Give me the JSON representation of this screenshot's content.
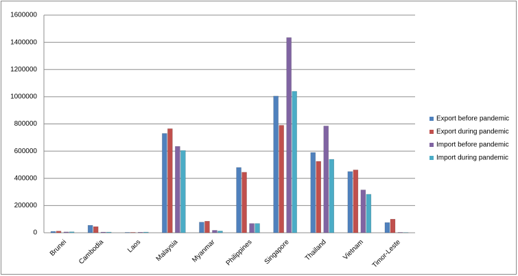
{
  "chart_data": {
    "type": "bar",
    "categories": [
      "Brunei",
      "Cambodia",
      "Laos",
      "Malaysia",
      "Myanmar",
      "Philippines",
      "Singapore",
      "Thailand",
      "Vietnam",
      "Timor-Leste"
    ],
    "series": [
      {
        "name": "Export before pandemic",
        "color": "#4f81bd",
        "values": [
          10000,
          55000,
          3000,
          730000,
          78000,
          480000,
          1005000,
          590000,
          450000,
          75000
        ]
      },
      {
        "name": "Export during pandemic",
        "color": "#c0504d",
        "values": [
          12000,
          45000,
          3000,
          765000,
          85000,
          445000,
          790000,
          525000,
          462000,
          100000
        ]
      },
      {
        "name": "Import before pandemic",
        "color": "#8064a2",
        "values": [
          6000,
          5000,
          4000,
          635000,
          18000,
          68000,
          1435000,
          785000,
          315000,
          3000
        ]
      },
      {
        "name": "Import during pandemic",
        "color": "#4bacc6",
        "values": [
          7000,
          5000,
          5000,
          605000,
          13000,
          68000,
          1040000,
          540000,
          283000,
          2000
        ]
      }
    ],
    "ylim": [
      0,
      1600000
    ],
    "yticks": [
      0,
      200000,
      400000,
      600000,
      800000,
      1000000,
      1200000,
      1400000,
      1600000
    ],
    "grid": true,
    "legend": "right"
  }
}
